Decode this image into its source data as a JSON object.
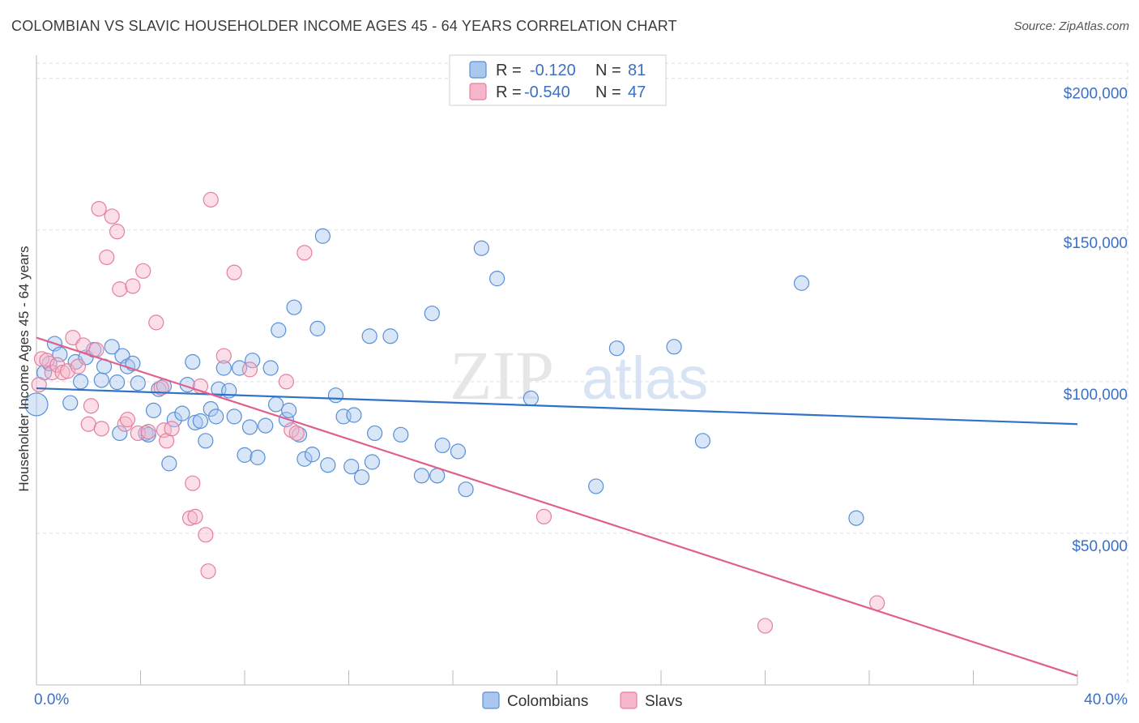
{
  "title": "COLOMBIAN VS SLAVIC HOUSEHOLDER INCOME AGES 45 - 64 YEARS CORRELATION CHART",
  "source": "Source: ZipAtlas.com",
  "watermark": {
    "zip": "ZIP",
    "atlas": "atlas"
  },
  "colors": {
    "colombians_fill": "#a9c7ef",
    "colombians_stroke": "#5a8fd6",
    "colombians_line": "#2f72c9",
    "slavs_fill": "#f6b6c9",
    "slavs_stroke": "#e57fa0",
    "slavs_line": "#e0608c",
    "tick_text": "#3a6fc8",
    "grid": "#dddddd"
  },
  "legend": {
    "rows": [
      {
        "r_label": "R =",
        "r_value": "-0.120",
        "n_label": "N =",
        "n_value": "81"
      },
      {
        "r_label": "R =",
        "r_value": "-0.540",
        "n_label": "N =",
        "n_value": "47"
      }
    ]
  },
  "bottom_legend": [
    "Colombians",
    "Slavs"
  ],
  "chart_data": {
    "type": "scatter",
    "title": "COLOMBIAN VS SLAVIC HOUSEHOLDER INCOME AGES 45 - 64 YEARS CORRELATION CHART",
    "xlabel": "",
    "ylabel": "Householder Income Ages 45 - 64 years",
    "xlim": [
      0,
      40
    ],
    "ylim": [
      0,
      205000
    ],
    "x_tick_labels": [
      "0.0%",
      "40.0%"
    ],
    "y_ticks": [
      50000,
      100000,
      150000,
      200000
    ],
    "y_tick_labels": [
      "$50,000",
      "$100,000",
      "$150,000",
      "$200,000"
    ],
    "grid": true,
    "legend_position": "top-center",
    "series": [
      {
        "name": "Colombians",
        "r": -0.12,
        "n": 81,
        "trend": {
          "x": [
            0,
            40
          ],
          "y": [
            97800,
            86000
          ]
        },
        "points": [
          [
            0.0,
            92500
          ],
          [
            0.3,
            103000
          ],
          [
            0.5,
            106000
          ],
          [
            0.7,
            112500
          ],
          [
            0.9,
            109000
          ],
          [
            1.3,
            93000
          ],
          [
            1.5,
            106500
          ],
          [
            1.7,
            100000
          ],
          [
            1.9,
            108000
          ],
          [
            2.2,
            110500
          ],
          [
            2.5,
            100500
          ],
          [
            2.6,
            105000
          ],
          [
            2.9,
            111500
          ],
          [
            3.1,
            99800
          ],
          [
            3.3,
            108500
          ],
          [
            3.5,
            105000
          ],
          [
            3.7,
            106000
          ],
          [
            3.9,
            99500
          ],
          [
            4.2,
            83000
          ],
          [
            4.3,
            82500
          ],
          [
            4.5,
            90500
          ],
          [
            4.7,
            97500
          ],
          [
            4.9,
            98500
          ],
          [
            5.1,
            73000
          ],
          [
            5.3,
            87500
          ],
          [
            5.6,
            89500
          ],
          [
            5.8,
            99000
          ],
          [
            6.0,
            106500
          ],
          [
            6.1,
            86500
          ],
          [
            6.3,
            87000
          ],
          [
            6.5,
            80500
          ],
          [
            6.7,
            91000
          ],
          [
            6.9,
            88500
          ],
          [
            7.0,
            97500
          ],
          [
            7.2,
            104500
          ],
          [
            7.4,
            97000
          ],
          [
            7.6,
            88500
          ],
          [
            7.8,
            104500
          ],
          [
            8.0,
            75800
          ],
          [
            8.2,
            85000
          ],
          [
            8.3,
            107000
          ],
          [
            8.5,
            75000
          ],
          [
            8.8,
            85500
          ],
          [
            9.0,
            104500
          ],
          [
            9.2,
            92500
          ],
          [
            9.3,
            117000
          ],
          [
            9.6,
            87500
          ],
          [
            9.7,
            90500
          ],
          [
            9.9,
            124500
          ],
          [
            10.1,
            82500
          ],
          [
            10.3,
            74500
          ],
          [
            10.6,
            76000
          ],
          [
            10.8,
            117500
          ],
          [
            11.0,
            148000
          ],
          [
            11.2,
            72500
          ],
          [
            11.5,
            95500
          ],
          [
            11.8,
            88500
          ],
          [
            12.1,
            72000
          ],
          [
            12.2,
            89000
          ],
          [
            12.5,
            68500
          ],
          [
            12.8,
            115000
          ],
          [
            12.9,
            73500
          ],
          [
            13.0,
            83000
          ],
          [
            13.6,
            115000
          ],
          [
            14.0,
            82500
          ],
          [
            14.8,
            69000
          ],
          [
            15.2,
            122500
          ],
          [
            15.4,
            69000
          ],
          [
            15.6,
            79000
          ],
          [
            16.2,
            77000
          ],
          [
            16.5,
            64500
          ],
          [
            17.1,
            144000
          ],
          [
            17.7,
            134000
          ],
          [
            19.0,
            94500
          ],
          [
            21.5,
            65500
          ],
          [
            22.3,
            111000
          ],
          [
            24.5,
            111500
          ],
          [
            25.6,
            80500
          ],
          [
            29.4,
            132500
          ],
          [
            31.5,
            55000
          ],
          [
            3.2,
            83000
          ]
        ]
      },
      {
        "name": "Slavs",
        "r": -0.54,
        "n": 47,
        "trend": {
          "x": [
            0,
            40
          ],
          "y": [
            114500,
            3000
          ]
        },
        "points": [
          [
            0.1,
            99000
          ],
          [
            0.2,
            107500
          ],
          [
            0.4,
            107000
          ],
          [
            0.6,
            103000
          ],
          [
            0.8,
            105500
          ],
          [
            1.0,
            103000
          ],
          [
            1.2,
            103500
          ],
          [
            1.4,
            114500
          ],
          [
            1.6,
            105000
          ],
          [
            1.8,
            112000
          ],
          [
            2.0,
            86000
          ],
          [
            2.1,
            92000
          ],
          [
            2.3,
            110500
          ],
          [
            2.4,
            157000
          ],
          [
            2.5,
            84500
          ],
          [
            2.7,
            141000
          ],
          [
            2.9,
            154500
          ],
          [
            3.1,
            149500
          ],
          [
            3.2,
            130500
          ],
          [
            3.4,
            86000
          ],
          [
            3.5,
            87500
          ],
          [
            3.7,
            131500
          ],
          [
            3.9,
            83000
          ],
          [
            4.1,
            136500
          ],
          [
            4.3,
            83500
          ],
          [
            4.6,
            119500
          ],
          [
            4.8,
            98000
          ],
          [
            4.9,
            84000
          ],
          [
            5.0,
            80500
          ],
          [
            5.2,
            84500
          ],
          [
            5.9,
            55000
          ],
          [
            6.0,
            66500
          ],
          [
            6.1,
            55500
          ],
          [
            6.3,
            98500
          ],
          [
            6.5,
            49500
          ],
          [
            6.6,
            37500
          ],
          [
            6.7,
            160000
          ],
          [
            7.2,
            108500
          ],
          [
            7.6,
            136000
          ],
          [
            8.2,
            104000
          ],
          [
            9.6,
            100000
          ],
          [
            9.8,
            84000
          ],
          [
            10.0,
            83000
          ],
          [
            10.3,
            142500
          ],
          [
            19.5,
            55500
          ],
          [
            28.0,
            19500
          ],
          [
            32.3,
            27000
          ]
        ]
      }
    ]
  }
}
